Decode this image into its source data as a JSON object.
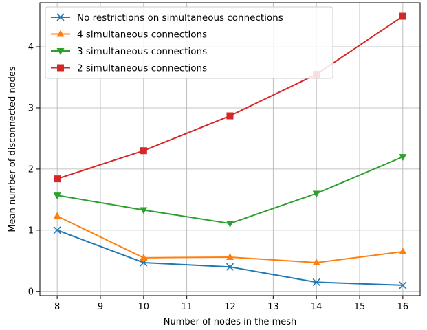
{
  "chart_data": {
    "type": "line",
    "title": "",
    "xlabel": "Number of nodes in the mesh",
    "ylabel": "Mean number of disconnected nodes",
    "x": [
      8,
      10,
      12,
      14,
      16
    ],
    "xlim": [
      7.6,
      16.4
    ],
    "ylim": [
      -0.07,
      4.72
    ],
    "xticks": [
      8,
      9,
      10,
      11,
      12,
      13,
      14,
      15,
      16
    ],
    "yticks": [
      0,
      1,
      2,
      3,
      4
    ],
    "grid": true,
    "legend_position": "top-left",
    "series": [
      {
        "name": "No restrictions on simultaneous connections",
        "values": [
          1.0,
          0.47,
          0.4,
          0.15,
          0.1
        ],
        "color": "#1f77b4",
        "marker": "x"
      },
      {
        "name": "4 simultaneous connections",
        "values": [
          1.23,
          0.55,
          0.56,
          0.47,
          0.65
        ],
        "color": "#ff7f0e",
        "marker": "triangle-up"
      },
      {
        "name": "3 simultaneous connections",
        "values": [
          1.57,
          1.33,
          1.11,
          1.6,
          2.2
        ],
        "color": "#2ca02c",
        "marker": "triangle-down"
      },
      {
        "name": "2 simultaneous connections",
        "values": [
          1.84,
          2.3,
          2.87,
          3.55,
          4.5
        ],
        "color": "#d62728",
        "marker": "square"
      }
    ]
  }
}
